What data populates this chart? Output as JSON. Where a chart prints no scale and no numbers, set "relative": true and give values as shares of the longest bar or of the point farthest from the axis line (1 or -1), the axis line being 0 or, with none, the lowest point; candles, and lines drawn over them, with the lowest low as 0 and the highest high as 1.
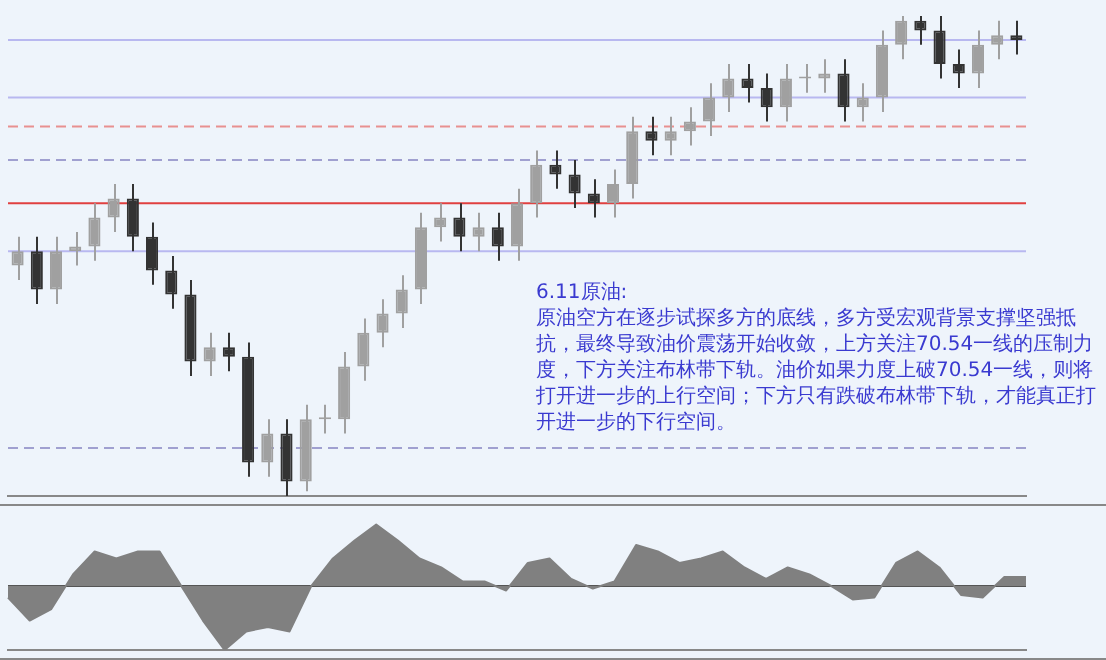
{
  "chart_data": [
    {
      "type": "candlestick",
      "relative": true,
      "grid": false,
      "legend": false,
      "colors": [
        "#a0a0a0",
        "#333333",
        "#a0a0a0",
        "#a0a0a0",
        "#a0a0a0",
        "#a0a0a0",
        "#333333",
        "#333333",
        "#333333",
        "#333333",
        "#a0a0a0",
        "#333333",
        "#333333",
        "#a0a0a0",
        "#333333",
        "#a0a0a0",
        "#a0a0a0",
        "#a0a0a0",
        "#a0a0a0",
        "#a0a0a0",
        "#a0a0a0",
        "#a0a0a0",
        "#a0a0a0",
        "#333333",
        "#a0a0a0",
        "#333333",
        "#a0a0a0",
        "#a0a0a0",
        "#333333",
        "#333333",
        "#333333",
        "#a0a0a0",
        "#a0a0a0",
        "#333333",
        "#a0a0a0",
        "#a0a0a0",
        "#a0a0a0",
        "#a0a0a0",
        "#333333",
        "#333333",
        "#a0a0a0",
        "#a0a0a0",
        "#a0a0a0",
        "#333333",
        "#a0a0a0",
        "#a0a0a0",
        "#a0a0a0",
        "#333333",
        "#333333",
        "#333333",
        "#a0a0a0",
        "#a0a0a0",
        "#333333"
      ],
      "categories": [
        null,
        null,
        null,
        null,
        null,
        null,
        null,
        null,
        null,
        null,
        null,
        null,
        null,
        null,
        null,
        null,
        null,
        null,
        null,
        null,
        null,
        null,
        null,
        null,
        null,
        null,
        null,
        null,
        null,
        null,
        null,
        null,
        null,
        null,
        null,
        null,
        null,
        null,
        null,
        null,
        null,
        null,
        null,
        null,
        null,
        null,
        null,
        null,
        null,
        null,
        null,
        null,
        null
      ],
      "ohlc": [
        [
          0.48,
          0.54,
          0.45,
          0.51
        ],
        [
          0.51,
          0.54,
          0.4,
          0.43
        ],
        [
          0.43,
          0.54,
          0.4,
          0.51
        ],
        [
          0.51,
          0.55,
          0.48,
          0.52
        ],
        [
          0.52,
          0.61,
          0.49,
          0.58
        ],
        [
          0.58,
          0.65,
          0.55,
          0.62
        ],
        [
          0.62,
          0.65,
          0.51,
          0.54
        ],
        [
          0.54,
          0.57,
          0.44,
          0.47
        ],
        [
          0.47,
          0.5,
          0.39,
          0.42
        ],
        [
          0.42,
          0.45,
          0.25,
          0.28
        ],
        [
          0.28,
          0.34,
          0.25,
          0.31
        ],
        [
          0.31,
          0.34,
          0.26,
          0.29
        ],
        [
          0.29,
          0.32,
          0.04,
          0.07
        ],
        [
          0.07,
          0.16,
          0.04,
          0.13
        ],
        [
          0.13,
          0.16,
          0.0,
          0.03
        ],
        [
          0.03,
          0.19,
          0.01,
          0.16
        ],
        [
          0.16,
          0.19,
          0.13,
          0.16
        ],
        [
          0.16,
          0.3,
          0.13,
          0.27
        ],
        [
          0.27,
          0.37,
          0.24,
          0.34
        ],
        [
          0.34,
          0.41,
          0.31,
          0.38
        ],
        [
          0.38,
          0.46,
          0.35,
          0.43
        ],
        [
          0.43,
          0.59,
          0.4,
          0.56
        ],
        [
          0.56,
          0.61,
          0.53,
          0.58
        ],
        [
          0.58,
          0.61,
          0.51,
          0.54
        ],
        [
          0.54,
          0.59,
          0.51,
          0.56
        ],
        [
          0.56,
          0.59,
          0.49,
          0.52
        ],
        [
          0.52,
          0.64,
          0.49,
          0.61
        ],
        [
          0.61,
          0.72,
          0.58,
          0.69
        ],
        [
          0.69,
          0.72,
          0.64,
          0.67
        ],
        [
          0.67,
          0.7,
          0.6,
          0.63
        ],
        [
          0.63,
          0.66,
          0.58,
          0.61
        ],
        [
          0.61,
          0.68,
          0.58,
          0.65
        ],
        [
          0.65,
          0.79,
          0.62,
          0.76
        ],
        [
          0.76,
          0.79,
          0.71,
          0.74
        ],
        [
          0.74,
          0.79,
          0.71,
          0.76
        ],
        [
          0.76,
          0.81,
          0.73,
          0.78
        ],
        [
          0.78,
          0.86,
          0.75,
          0.83
        ],
        [
          0.83,
          0.9,
          0.8,
          0.87
        ],
        [
          0.87,
          0.9,
          0.82,
          0.85
        ],
        [
          0.85,
          0.88,
          0.78,
          0.81
        ],
        [
          0.81,
          0.9,
          0.78,
          0.87
        ],
        [
          0.87,
          0.9,
          0.84,
          0.87
        ],
        [
          0.87,
          0.91,
          0.84,
          0.88
        ],
        [
          0.88,
          0.91,
          0.78,
          0.81
        ],
        [
          0.81,
          0.86,
          0.78,
          0.83
        ],
        [
          0.83,
          0.97,
          0.8,
          0.94
        ],
        [
          0.94,
          1.0,
          0.91,
          0.99
        ],
        [
          0.99,
          1.0,
          0.94,
          0.97
        ],
        [
          0.97,
          1.0,
          0.87,
          0.9
        ],
        [
          0.9,
          0.93,
          0.85,
          0.88
        ],
        [
          0.88,
          0.97,
          0.85,
          0.94
        ],
        [
          0.94,
          0.99,
          0.91,
          0.96
        ],
        [
          0.96,
          0.99,
          0.92,
          0.95
        ]
      ],
      "ref_lines": [
        {
          "axis": "y",
          "value": 0.95,
          "color": "#b8b8f0",
          "line_style": "solid"
        },
        {
          "axis": "y",
          "value": 0.83,
          "color": "#b8b8f0",
          "line_style": "solid"
        },
        {
          "axis": "y",
          "value": 0.77,
          "color": "#e89090",
          "line_style": "dashed"
        },
        {
          "axis": "y",
          "value": 0.7,
          "color": "#a0a0d0",
          "line_style": "dashed"
        },
        {
          "axis": "y",
          "value": 0.61,
          "color": "#e04040",
          "line_style": "solid"
        },
        {
          "axis": "y",
          "value": 0.51,
          "color": "#b8b8f0",
          "line_style": "solid"
        },
        {
          "axis": "y",
          "value": 0.1,
          "color": "#a0a0d0",
          "line_style": "dashed"
        }
      ],
      "annotations": [
        "6.11原油:",
        "原油空方在逐步试探多方的底线，多方受宏观背景支撑坚强抵抗，最终导致油价震荡开始收敛，上方关注70.54一线的压制力度，下方关注布林带下轨。油价如果力度上破70.54一线，则将打开进一步的上行空间；下方只有跌破布林带下轨，才能真正打开进一步的下行空间。"
      ]
    },
    {
      "type": "area",
      "relative": true,
      "color": "#808080",
      "grid": false,
      "legend": false,
      "categories": [
        null,
        null,
        null,
        null,
        null,
        null,
        null,
        null,
        null,
        null,
        null,
        null,
        null,
        null,
        null,
        null,
        null,
        null,
        null,
        null,
        null,
        null,
        null,
        null,
        null,
        null,
        null,
        null,
        null,
        null,
        null,
        null,
        null,
        null,
        null,
        null,
        null,
        null,
        null,
        null,
        null,
        null,
        null,
        null,
        null,
        null,
        null,
        null
      ],
      "values": [
        -0.18,
        -0.54,
        -0.36,
        0.18,
        0.54,
        0.43,
        0.54,
        0.54,
        0,
        -0.54,
        -1,
        -0.71,
        -0.64,
        -0.71,
        0,
        0.43,
        0.71,
        0.96,
        0.71,
        0.43,
        0.29,
        0.07,
        0.07,
        -0.07,
        0.36,
        0.43,
        0.11,
        -0.04,
        0.07,
        0.64,
        0.54,
        0.36,
        0.43,
        0.54,
        0.29,
        0.11,
        0.29,
        0.18,
        0,
        -0.21,
        -0.18,
        0.36,
        0.54,
        0.29,
        -0.14,
        -0.18,
        0.14,
        0.14
      ]
    }
  ]
}
